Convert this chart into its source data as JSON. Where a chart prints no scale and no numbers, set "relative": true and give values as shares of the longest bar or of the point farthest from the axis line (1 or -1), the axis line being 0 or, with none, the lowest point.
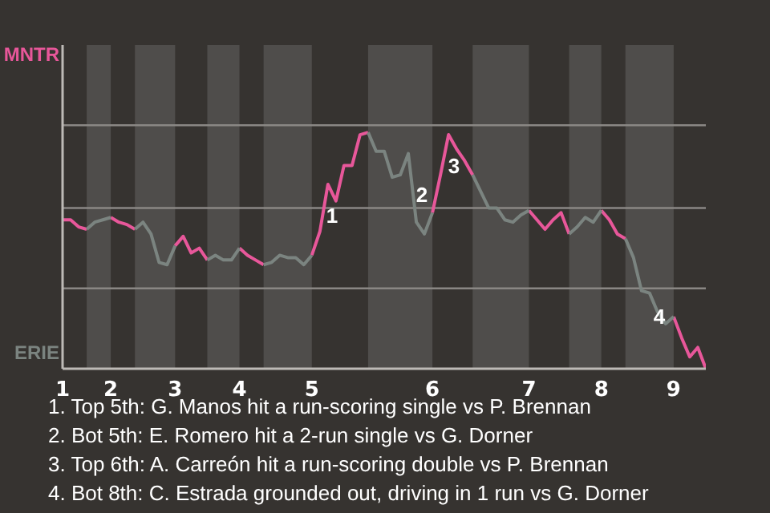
{
  "chart_data": {
    "type": "line",
    "relative": true,
    "categories": [
      "1",
      null,
      null,
      null,
      null,
      null,
      "2",
      null,
      null,
      null,
      null,
      null,
      null,
      null,
      "3",
      null,
      null,
      null,
      null,
      null,
      null,
      null,
      "4",
      null,
      null,
      null,
      null,
      null,
      null,
      null,
      null,
      "5",
      null,
      null,
      null,
      null,
      null,
      null,
      null,
      null,
      null,
      null,
      null,
      null,
      null,
      null,
      "6",
      null,
      null,
      null,
      null,
      null,
      null,
      null,
      null,
      null,
      null,
      null,
      "7",
      null,
      null,
      null,
      null,
      null,
      null,
      null,
      null,
      "8",
      null,
      null,
      null,
      null,
      null,
      null,
      null,
      null,
      "9",
      null,
      null,
      null,
      null
    ],
    "series": [
      {
        "color": "#e8579a",
        "values": [
          0.63,
          0.63,
          0.6,
          0.59,
          null,
          null,
          0.64,
          0.62,
          0.61,
          0.59,
          null,
          null,
          null,
          null,
          0.52,
          0.56,
          0.49,
          0.51,
          0.46,
          null,
          null,
          null,
          0.51,
          0.48,
          0.46,
          0.44,
          null,
          null,
          null,
          null,
          null,
          0.48,
          0.58,
          0.78,
          0.71,
          0.86,
          0.86,
          0.99,
          1,
          null,
          null,
          null,
          null,
          null,
          null,
          null,
          0.66,
          0.82,
          0.99,
          0.93,
          0.88,
          0.82,
          null,
          null,
          null,
          null,
          null,
          null,
          0.67,
          0.63,
          0.59,
          0.63,
          0.66,
          0.57,
          null,
          null,
          null,
          0.67,
          0.63,
          0.57,
          0.55,
          null,
          null,
          null,
          null,
          null,
          0.22,
          0.13,
          0.05,
          0.09,
          0
        ]
      },
      {
        "color": "#7b8480",
        "values": [
          null,
          null,
          null,
          0.59,
          0.62,
          0.63,
          0.64,
          null,
          null,
          0.59,
          0.62,
          0.57,
          0.45,
          0.44,
          0.52,
          null,
          null,
          null,
          0.46,
          0.48,
          0.46,
          0.46,
          0.51,
          null,
          null,
          0.44,
          0.45,
          0.48,
          0.47,
          0.47,
          0.44,
          0.48,
          null,
          null,
          null,
          null,
          null,
          null,
          1,
          0.92,
          0.92,
          0.81,
          0.82,
          0.91,
          0.62,
          0.57,
          0.66,
          null,
          null,
          null,
          null,
          0.82,
          0.75,
          0.68,
          0.68,
          0.63,
          0.62,
          0.65,
          0.67,
          null,
          null,
          null,
          null,
          0.57,
          0.6,
          0.64,
          0.62,
          0.67,
          null,
          null,
          0.55,
          0.47,
          0.33,
          0.32,
          0.24,
          0.19,
          0.22,
          null,
          null,
          null,
          null
        ]
      }
    ],
    "ref_lines": [
      {
        "axis": "y",
        "value": 0.34,
        "color": "#8a8784"
      },
      {
        "axis": "y",
        "value": 0.68,
        "color": "#8a8784"
      },
      {
        "axis": "y",
        "value": 1.03,
        "color": "#8a8784"
      }
    ],
    "marker": "none",
    "annotations": [
      "MNTR",
      "ERIE",
      "1",
      "2",
      "3",
      "4",
      "1. Top 5th: G. Manos hit a run-scoring single vs P. Brennan",
      "2. Bot 5th: E. Romero hit a 2-run single vs G. Dorner",
      "3. Top 6th: A. Carreón hit a run-scoring double vs P. Brennan",
      "4. Bot 8th: C. Estrada grounded out, driving in 1 run vs G. Dorner"
    ]
  }
}
